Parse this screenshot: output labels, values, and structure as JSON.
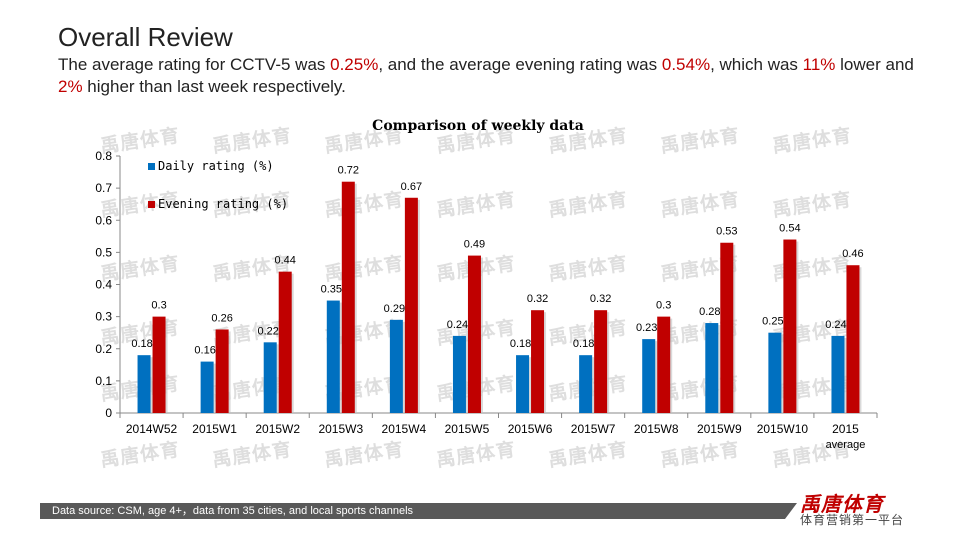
{
  "slide": {
    "title": "Overall Review",
    "subtitle": {
      "p1": "The average rating for CCTV-5 was ",
      "daily_avg": "0.25%",
      "p2": ", and the average evening rating was ",
      "evening_avg": "0.54%",
      "p3": ", which was ",
      "daily_change": "11%",
      "p4": " lower and ",
      "evening_change": "2%",
      "p5": " higher than last week respectively."
    },
    "watermark_text": "禹唐体育",
    "footer": "Data source: CSM, age 4+，data from 35 cities, and local sports channels",
    "logo": "禹唐体育",
    "tagline": "体育营销第一平台",
    "colors": {
      "accent": "#c00000",
      "daily": "#0070c0",
      "evening": "#c00000"
    }
  },
  "chart_data": {
    "type": "bar",
    "title": "Comparison of weekly data",
    "categories": [
      "2014W52",
      "2015W1",
      "2015W2",
      "2015W3",
      "2015W4",
      "2015W5",
      "2015W6",
      "2015W7",
      "2015W8",
      "2015W9",
      "2015W10",
      "2015 average"
    ],
    "series": [
      {
        "name": "Daily rating (%)",
        "color": "#0070c0",
        "values": [
          0.18,
          0.16,
          0.22,
          0.35,
          0.29,
          0.24,
          0.18,
          0.18,
          0.23,
          0.28,
          0.25,
          0.24
        ]
      },
      {
        "name": "Evening rating (%)",
        "color": "#c00000",
        "values": [
          0.3,
          0.26,
          0.44,
          0.72,
          0.67,
          0.49,
          0.32,
          0.32,
          0.3,
          0.53,
          0.54,
          0.46
        ]
      }
    ],
    "ylim": [
      0,
      0.8
    ],
    "yticks": [
      0,
      0.1,
      0.2,
      0.3,
      0.4,
      0.5,
      0.6,
      0.7,
      0.8
    ],
    "legend": "top-left",
    "grid": false
  }
}
